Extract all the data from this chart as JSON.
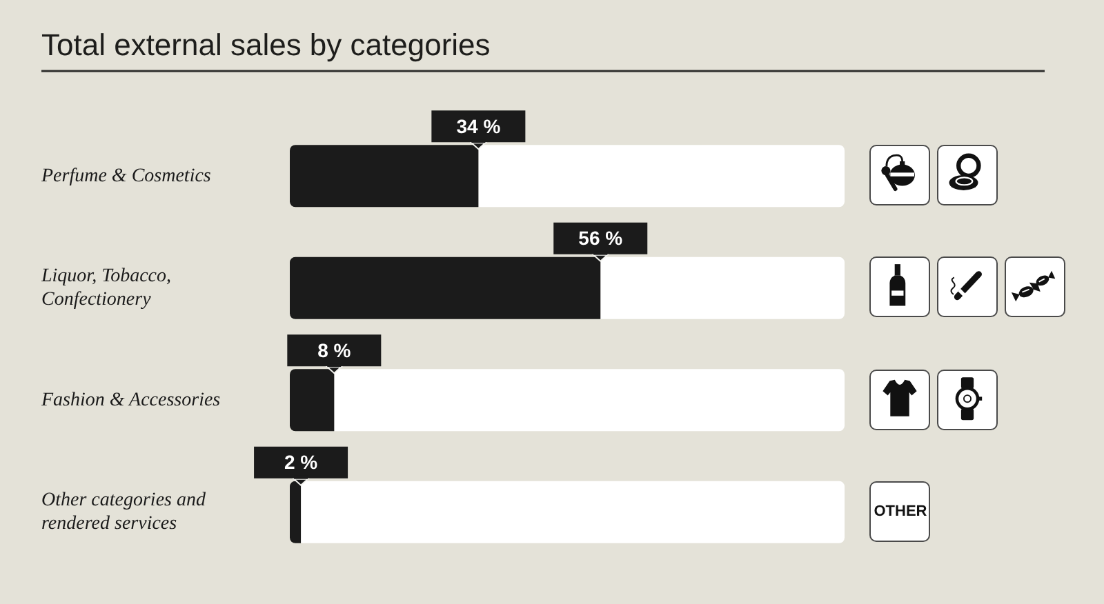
{
  "chart_data": {
    "type": "bar",
    "orientation": "horizontal",
    "stacked": true,
    "title": "Total external sales by categories",
    "categories": [
      "Perfume & Cosmetics",
      "Liquor, Tobacco, Confectionery",
      "Fashion & Accessories",
      "Other categories and rendered services"
    ],
    "series": [
      {
        "color": "#1b1b1b",
        "values": [
          34,
          56,
          8,
          2
        ],
        "value_labels": [
          "34 %",
          "56 %",
          "8 %",
          "2 %"
        ]
      },
      {
        "color": "#ffffff",
        "values": [
          66,
          44,
          92,
          98
        ]
      }
    ],
    "xlim": [
      0,
      100
    ],
    "tick_labels": "y",
    "grid": false,
    "legend": false,
    "annotations": [
      "OTHER"
    ]
  }
}
